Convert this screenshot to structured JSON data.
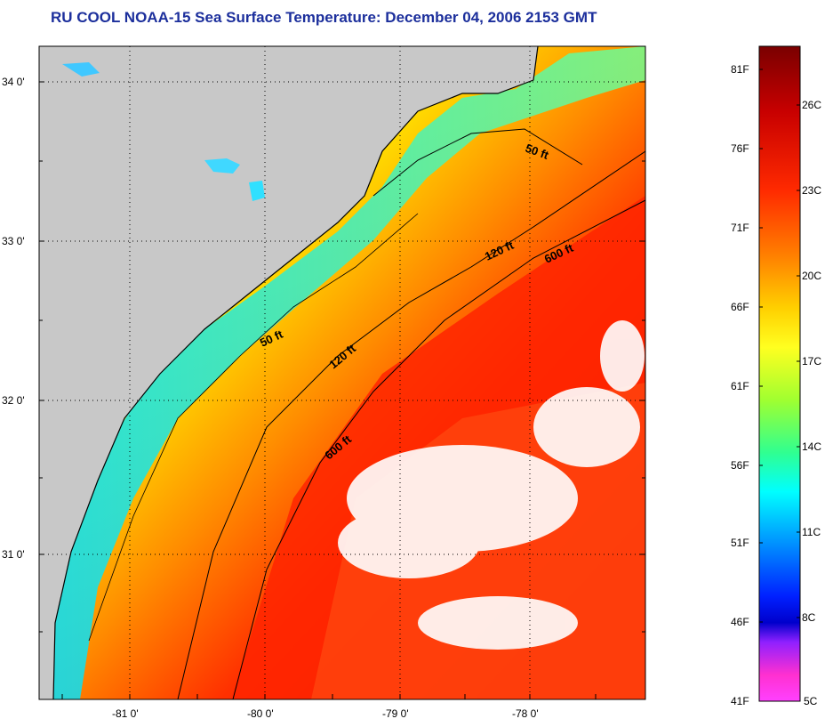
{
  "title": "RU COOL  NOAA-15  Sea Surface Temperature:  December 04, 2006 2153 GMT",
  "map": {
    "latitude_labels": [
      "34 0'",
      "33 0'",
      "32 0'",
      "31 0'"
    ],
    "longitude_labels": [
      "-81 0'",
      "-80 0'",
      "-79 0'",
      "-78 0'"
    ],
    "contour_labels": [
      "50 ft",
      "50 ft",
      "120 ft",
      "120 ft",
      "600 ft",
      "600 ft"
    ],
    "colors": {
      "land": "#c8c8c8",
      "coastline": "#000000",
      "cloud_mask": "#ffffff"
    }
  },
  "colorbar": {
    "fahrenheit_labels": [
      "81F",
      "76F",
      "71F",
      "66F",
      "61F",
      "56F",
      "51F",
      "46F",
      "41F"
    ],
    "celsius_labels": [
      "26C",
      "23C",
      "20C",
      "17C",
      "14C",
      "11C",
      "8C",
      "5C"
    ],
    "gradient_colors": [
      "#7a0000",
      "#cc0000",
      "#ff2a00",
      "#ff8000",
      "#ffd000",
      "#ffff20",
      "#a0ff30",
      "#30ff90",
      "#00ffff",
      "#0090ff",
      "#0020ff",
      "#0000cc",
      "#9020ff",
      "#ff30d0",
      "#ff40ff"
    ]
  }
}
